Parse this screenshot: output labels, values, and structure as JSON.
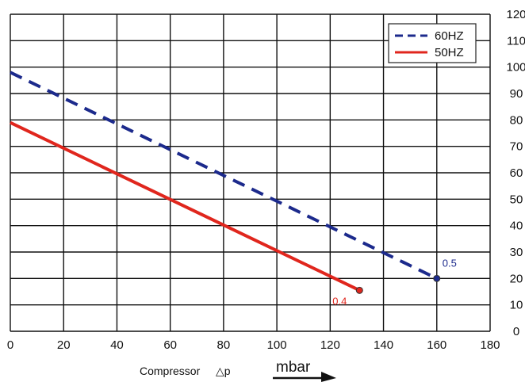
{
  "chart_data": {
    "type": "line",
    "x": {
      "range": [
        0,
        180
      ],
      "ticks": [
        0,
        20,
        40,
        60,
        80,
        100,
        120,
        140,
        160,
        180
      ]
    },
    "y": {
      "range": [
        0,
        120
      ],
      "ticks": [
        0,
        10,
        20,
        30,
        40,
        50,
        60,
        70,
        80,
        90,
        100,
        110,
        120
      ],
      "axis_side": "right"
    },
    "grid": true,
    "legend": {
      "position": "top-right"
    },
    "xlabel": "Compressor",
    "xlabel_symbol": "△p",
    "unit": "mbar",
    "series": [
      {
        "name": "60HZ",
        "color": "#1c2a8c",
        "style": "dashed",
        "points": [
          [
            0,
            98
          ],
          [
            160,
            20
          ]
        ],
        "end_label": "0.5"
      },
      {
        "name": "50HZ",
        "color": "#e0261d",
        "style": "solid",
        "points": [
          [
            0,
            79
          ],
          [
            131,
            15.5
          ]
        ],
        "end_label": "0.4"
      }
    ]
  }
}
